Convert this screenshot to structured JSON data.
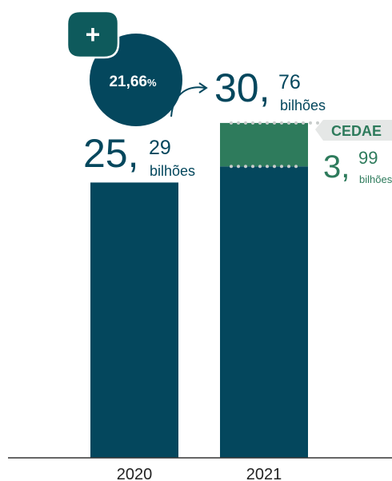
{
  "chart_data": {
    "type": "bar",
    "categories": [
      "2020",
      "2021"
    ],
    "series": [
      {
        "values": [
          25.29,
          26.77
        ]
      },
      {
        "values": [
          0,
          3.99
        ]
      }
    ],
    "ylim": [
      0,
      32
    ],
    "value_labels": [
      {
        "int": "25,",
        "dec": "29",
        "unit": "bilhões"
      },
      {
        "int": "30,",
        "dec": "76",
        "unit": "bilhões"
      }
    ],
    "segment_callout": {
      "name": "CEDAE",
      "int": "3,",
      "dec": "99",
      "unit": "bilhões"
    },
    "growth_badge": {
      "sign": "+",
      "value": "21,66",
      "unit": "%"
    }
  },
  "colors": {
    "base": "#04475d",
    "segment": "#2e7b5c",
    "badge_dark": "#0e5a5c",
    "callout_bg": "#e5e7e6",
    "dots": "#c8cccb",
    "axis": "#333333",
    "text": "#222222"
  }
}
